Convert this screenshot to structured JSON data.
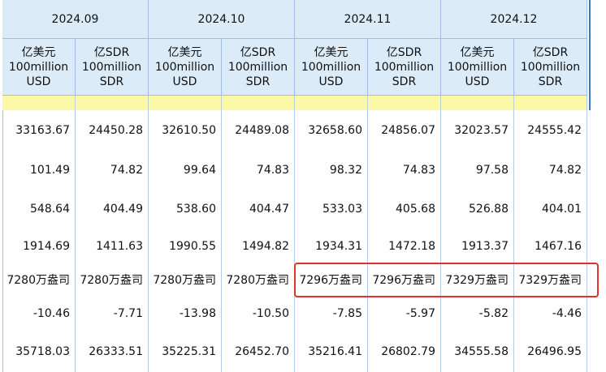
{
  "table": {
    "months": [
      "2024.09",
      "2024.10",
      "2024.11",
      "2024.12"
    ],
    "units": [
      [
        "亿美元",
        "100million",
        "USD"
      ],
      [
        "亿SDR",
        "100million",
        "SDR"
      ]
    ],
    "rows": [
      [
        "33163.67",
        "24450.28",
        "32610.50",
        "24489.08",
        "32658.60",
        "24856.07",
        "32023.57",
        "24555.42"
      ],
      [
        "101.49",
        "74.82",
        "99.64",
        "74.83",
        "98.32",
        "74.83",
        "97.58",
        "74.82"
      ],
      [
        "548.64",
        "404.49",
        "538.60",
        "404.47",
        "533.03",
        "405.68",
        "526.88",
        "404.01"
      ],
      [
        "1914.69",
        "1411.63",
        "1990.55",
        "1494.82",
        "1934.31",
        "1472.18",
        "1913.37",
        "1467.16"
      ],
      [
        "7280万盎司",
        "7280万盎司",
        "7280万盎司",
        "7280万盎司",
        "7296万盎司",
        "7296万盎司",
        "7329万盎司",
        "7329万盎司"
      ],
      [
        "-10.46",
        "-7.71",
        "-13.98",
        "-10.50",
        "-7.85",
        "-5.97",
        "-5.82",
        "-4.46"
      ],
      [
        "35718.03",
        "26333.51",
        "35225.31",
        "26452.70",
        "35216.41",
        "26802.79",
        "34555.58",
        "26496.95"
      ]
    ]
  }
}
